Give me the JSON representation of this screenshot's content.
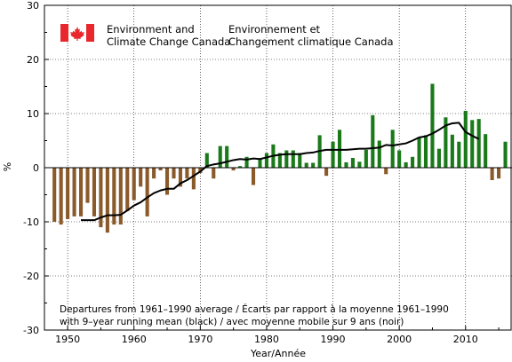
{
  "header": {
    "org_en_line1": "Environment and",
    "org_en_line2": "Climate Change Canada",
    "org_fr_line1": "Environnement et",
    "org_fr_line2": "Changement climatique Canada"
  },
  "note": {
    "line1": "Departures from 1961–1990 average / Écarts par rapport à la moyenne 1961–1990",
    "line2": "with 9–year running mean (black)    / avec moyenne mobile sur 9 ans (noir)"
  },
  "colors": {
    "positive": "#1a7a1a",
    "negative": "#8b5a2b",
    "mean_line": "#000000",
    "flag_red": "#e8262b"
  },
  "chart_data": {
    "type": "bar",
    "title": "",
    "xlabel": "Year/Année",
    "ylabel": "%",
    "xlim": [
      1946.5,
      2017
    ],
    "ylim": [
      -30,
      30
    ],
    "x_ticks": [
      1950,
      1960,
      1970,
      1980,
      1990,
      2000,
      2010
    ],
    "y_ticks": [
      -30,
      -20,
      -10,
      0,
      10,
      20,
      30
    ],
    "grid": true,
    "series": [
      {
        "type": "bar",
        "x": [
          1948,
          1949,
          1950,
          1951,
          1952,
          1953,
          1954,
          1955,
          1956,
          1957,
          1958,
          1959,
          1960,
          1961,
          1962,
          1963,
          1964,
          1965,
          1966,
          1967,
          1968,
          1969,
          1970,
          1971,
          1972,
          1973,
          1974,
          1975,
          1976,
          1977,
          1978,
          1979,
          1980,
          1981,
          1982,
          1983,
          1984,
          1985,
          1986,
          1987,
          1988,
          1989,
          1990,
          1991,
          1992,
          1993,
          1994,
          1995,
          1996,
          1997,
          1998,
          1999,
          2000,
          2001,
          2002,
          2003,
          2004,
          2005,
          2006,
          2007,
          2008,
          2009,
          2010,
          2011,
          2012,
          2013,
          2014,
          2015,
          2016
        ],
        "values": [
          -10,
          -10.5,
          -9.5,
          -9,
          -9,
          -6.5,
          -9,
          -11,
          -12,
          -10.5,
          -10.5,
          -8,
          -6,
          -3.5,
          -9,
          -2,
          -0.5,
          -5,
          -2,
          -3.5,
          -2,
          -4,
          -1,
          2.7,
          -2,
          4,
          4,
          -0.5,
          0.3,
          2,
          -3.2,
          1.5,
          2.7,
          4.3,
          2.7,
          3.2,
          3.2,
          2.7,
          0.9,
          0.9,
          6,
          -1.5,
          4.8,
          7,
          1,
          1.8,
          1.1,
          3.3,
          9.7,
          5,
          -1.2,
          7,
          3.2,
          1,
          2,
          5.5,
          6,
          15.5,
          3.5,
          9.3,
          6.1,
          4.8,
          10.5,
          8.8,
          9,
          6.2,
          -2.3,
          -2,
          4.8
        ]
      },
      {
        "type": "line",
        "name": "9-year running mean",
        "x": [
          1952,
          1953,
          1954,
          1955,
          1956,
          1957,
          1958,
          1959,
          1960,
          1961,
          1962,
          1963,
          1964,
          1965,
          1966,
          1967,
          1968,
          1969,
          1970,
          1971,
          1972,
          1973,
          1974,
          1975,
          1976,
          1977,
          1978,
          1979,
          1980,
          1981,
          1982,
          1983,
          1984,
          1985,
          1986,
          1987,
          1988,
          1989,
          1990,
          1991,
          1992,
          1993,
          1994,
          1995,
          1996,
          1997,
          1998,
          1999,
          2000,
          2001,
          2002,
          2003,
          2004,
          2005,
          2006,
          2007,
          2008,
          2009,
          2010,
          2011,
          2012
        ],
        "values": [
          -9.7,
          -9.7,
          -9.7,
          -9.2,
          -8.8,
          -8.8,
          -8.7,
          -7.9,
          -7,
          -6.4,
          -5.5,
          -4.7,
          -4.2,
          -3.9,
          -3.9,
          -2.9,
          -2.3,
          -1.5,
          -0.7,
          0.3,
          0.6,
          0.8,
          1.1,
          1.4,
          1.6,
          1.5,
          1.7,
          1.6,
          1.9,
          2.2,
          2.4,
          2.5,
          2.5,
          2.5,
          2.7,
          2.8,
          3.1,
          3.3,
          3.3,
          3.3,
          3.3,
          3.4,
          3.5,
          3.5,
          3.6,
          3.7,
          4.2,
          4.1,
          4.3,
          4.5,
          5,
          5.6,
          5.8,
          6.3,
          7,
          7.8,
          8.2,
          8.3,
          6.6,
          5.9,
          5.3
        ]
      }
    ]
  }
}
